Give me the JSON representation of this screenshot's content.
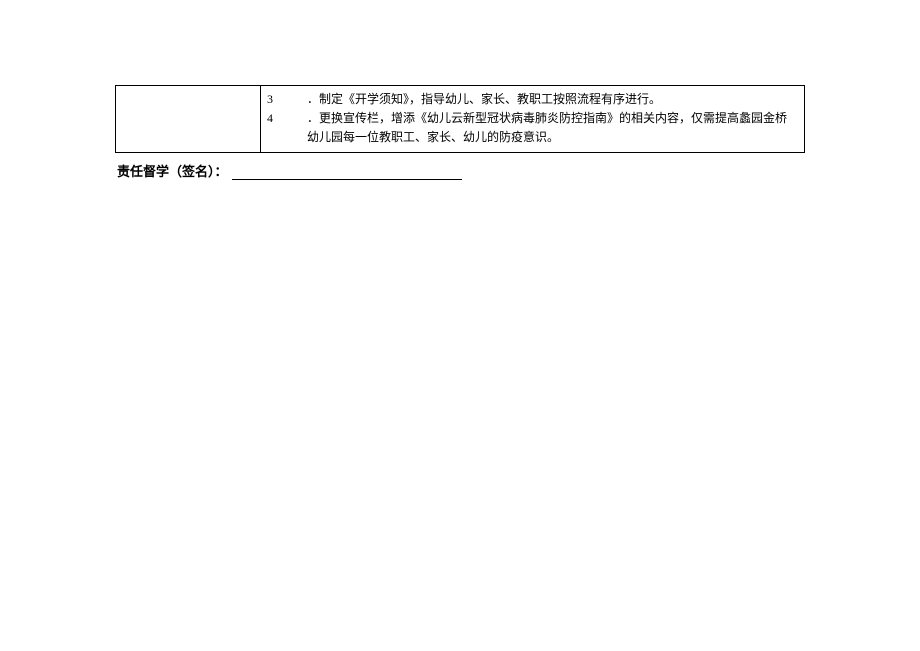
{
  "table": {
    "rows": [
      {
        "left": "",
        "items": [
          {
            "number": "3",
            "text": "．制定《开学须知》，指导幼儿、家长、教职工按照流程有序进行。"
          },
          {
            "number": "4",
            "text": "．更换宣传栏，增添《幼儿云新型冠状病毒肺炎防控指南》的相关内容，仅需提高蠡园金桥幼儿园每一位教职工、家长、幼儿的防疫意识。"
          }
        ]
      }
    ]
  },
  "signature": {
    "label": "责任督学（签名）："
  },
  "style": {
    "border_color": "#000000",
    "background_color": "#ffffff",
    "font_size_table": 12,
    "font_size_signature": 13,
    "underline_width": 230
  }
}
